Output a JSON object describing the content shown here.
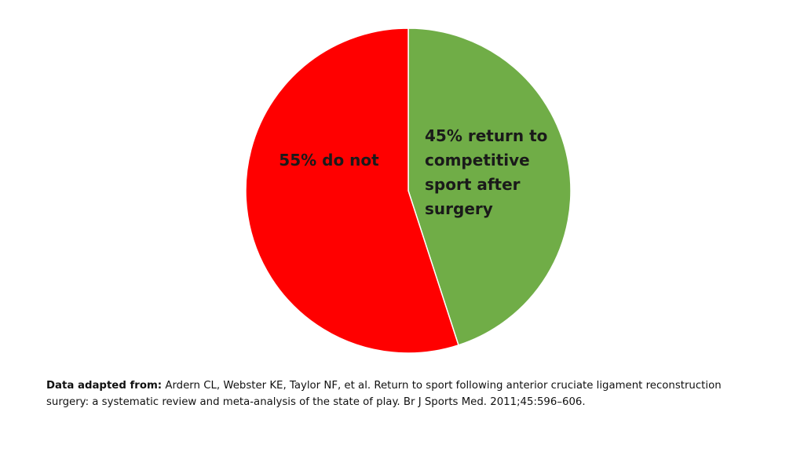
{
  "chart_data": {
    "type": "pie",
    "slices": [
      {
        "label_lines": [
          "45% return to",
          "competitive",
          "sport after",
          "surgery"
        ],
        "value": 45,
        "color": "#70ad47"
      },
      {
        "label_lines": [
          "55% do not"
        ],
        "value": 55,
        "color": "#ff0000"
      }
    ]
  },
  "source": {
    "prefix": "Data adapted from:",
    "text": " Ardern CL, Webster KE, Taylor NF, et al. Return to sport following anterior cruciate ligament reconstruction surgery: a systematic review and meta-analysis of the state of play. Br J Sports Med. 2011;45:596–606."
  }
}
